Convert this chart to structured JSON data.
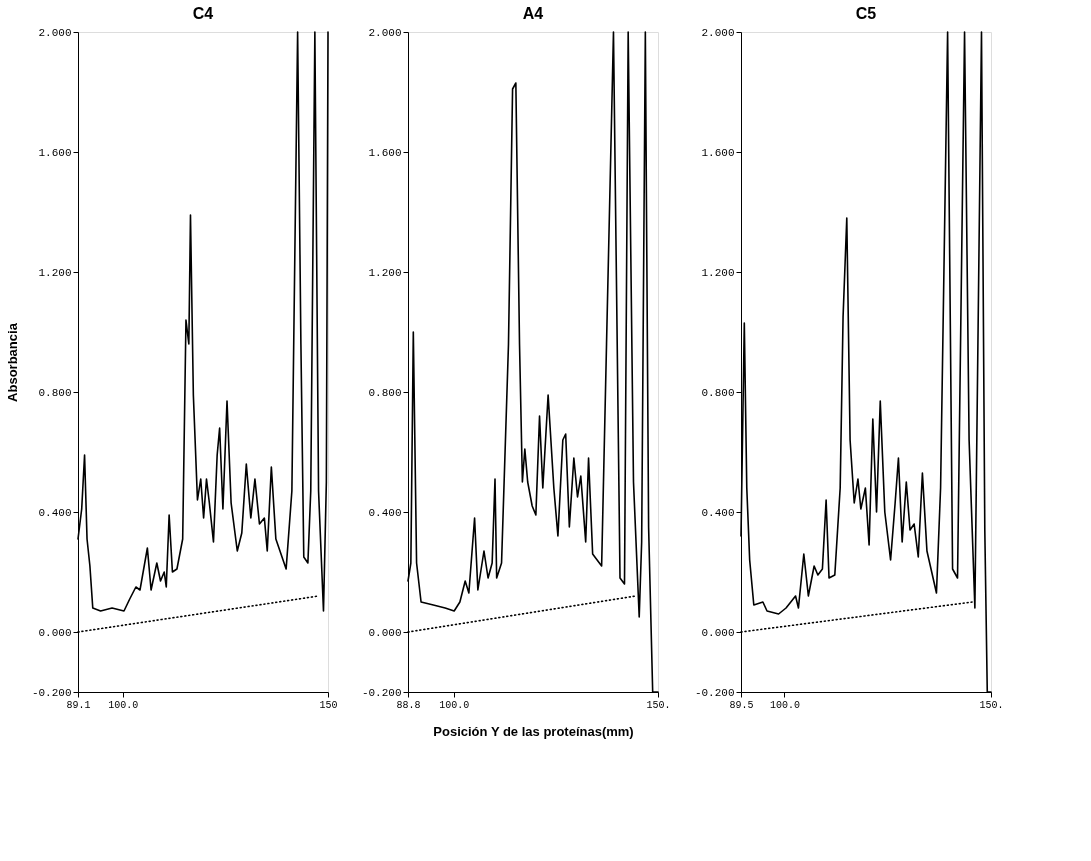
{
  "chart_data": [
    {
      "type": "line",
      "title": "C4",
      "ylabel": "Absorbancia",
      "xlim": [
        89.1,
        150
      ],
      "xticks": [
        {
          "value": 89.1,
          "label": "89.1"
        },
        {
          "value": 100.0,
          "label": "100.0"
        },
        {
          "value": 150,
          "label": "150"
        }
      ],
      "ylim": [
        -0.2,
        2.0
      ],
      "yticks": [
        {
          "value": -0.2,
          "label": "-0.200"
        },
        {
          "value": 0,
          "label": "0.000"
        },
        {
          "value": 0.4,
          "label": "0.400"
        },
        {
          "value": 0.8,
          "label": "0.800"
        },
        {
          "value": 1.2,
          "label": "1.200"
        },
        {
          "value": 1.6,
          "label": "1.600"
        },
        {
          "value": 2.0,
          "label": "2.000"
        }
      ],
      "series": [
        {
          "color": "#000000",
          "line_style": "solid",
          "x": [
            89.1,
            90.0,
            90.7,
            91.3,
            92.0,
            92.7,
            94.6,
            97.4,
            100.3,
            101.7,
            103.2,
            104.2,
            106.0,
            106.9,
            108.3,
            109.2,
            110.1,
            110.6,
            111.3,
            112.1,
            113.2,
            114.6,
            115.4,
            116.1,
            116.5,
            117.2,
            118.2,
            119.0,
            119.7,
            120.4,
            121.1,
            122.1,
            123.0,
            123.6,
            124.4,
            125.4,
            126.4,
            127.9,
            129.0,
            130.1,
            131.2,
            132.2,
            133.3,
            134.5,
            135.2,
            136.2,
            137.3,
            139.8,
            141.2,
            142.6,
            143.4,
            144.1,
            145.1,
            145.8,
            146.8,
            147.7,
            148.9,
            149.6,
            150.0
          ],
          "values": [
            0.31,
            0.41,
            0.59,
            0.31,
            0.22,
            0.08,
            0.07,
            0.08,
            0.07,
            0.11,
            0.15,
            0.14,
            0.28,
            0.14,
            0.23,
            0.17,
            0.2,
            0.15,
            0.39,
            0.2,
            0.21,
            0.31,
            1.04,
            0.96,
            1.39,
            0.79,
            0.44,
            0.51,
            0.38,
            0.51,
            0.43,
            0.3,
            0.59,
            0.68,
            0.41,
            0.77,
            0.43,
            0.27,
            0.33,
            0.56,
            0.38,
            0.51,
            0.36,
            0.38,
            0.27,
            0.55,
            0.31,
            0.21,
            0.47,
            2.0,
            0.96,
            0.25,
            0.23,
            0.47,
            2.0,
            0.47,
            0.07,
            0.5,
            2.0
          ]
        },
        {
          "type": "line",
          "line_style": "dotted",
          "color": "#000000",
          "x": [
            89.1,
            147.7
          ],
          "values": [
            0.0,
            0.12
          ]
        }
      ]
    },
    {
      "type": "line",
      "title": "A4",
      "xlabel": "Posición Y de las proteínas(mm)",
      "xlim": [
        88.8,
        150
      ],
      "xticks": [
        {
          "value": 88.8,
          "label": "88.8"
        },
        {
          "value": 100.0,
          "label": "100.0"
        },
        {
          "value": 150,
          "label": "150."
        }
      ],
      "ylim": [
        -0.2,
        2.0
      ],
      "yticks": [
        {
          "value": -0.2,
          "label": "-0.200"
        },
        {
          "value": 0,
          "label": "0.000"
        },
        {
          "value": 0.4,
          "label": "0.400"
        },
        {
          "value": 0.8,
          "label": "0.800"
        },
        {
          "value": 1.2,
          "label": "1.200"
        },
        {
          "value": 1.6,
          "label": "1.600"
        },
        {
          "value": 2.0,
          "label": "2.000"
        }
      ],
      "series": [
        {
          "color": "#000000",
          "line_style": "solid",
          "x": [
            88.8,
            89.5,
            90.1,
            90.9,
            92.0,
            95.0,
            97.9,
            100.1,
            101.5,
            102.8,
            103.7,
            105.1,
            105.9,
            107.4,
            108.4,
            109.4,
            110.1,
            110.5,
            111.7,
            113.4,
            114.4,
            115.2,
            116.1,
            116.8,
            117.4,
            118.1,
            119.2,
            120.1,
            121.0,
            121.8,
            123.1,
            124.5,
            125.5,
            126.7,
            127.4,
            128.3,
            129.4,
            130.3,
            131.1,
            132.3,
            133.0,
            134.0,
            136.2,
            137.4,
            139.1,
            140.7,
            141.8,
            142.7,
            144.0,
            145.4,
            146.0,
            146.9,
            147.7,
            148.7,
            150.0
          ],
          "values": [
            0.17,
            0.23,
            1.0,
            0.23,
            0.1,
            0.09,
            0.08,
            0.07,
            0.1,
            0.17,
            0.13,
            0.38,
            0.14,
            0.27,
            0.18,
            0.23,
            0.51,
            0.18,
            0.23,
            0.96,
            1.81,
            1.83,
            0.96,
            0.5,
            0.61,
            0.5,
            0.42,
            0.39,
            0.72,
            0.48,
            0.79,
            0.48,
            0.32,
            0.64,
            0.66,
            0.35,
            0.58,
            0.45,
            0.52,
            0.3,
            0.58,
            0.26,
            0.22,
            0.96,
            2.0,
            0.18,
            0.16,
            2.0,
            0.5,
            0.05,
            0.3,
            2.0,
            0.35,
            -0.2,
            -0.2
          ]
        },
        {
          "type": "line",
          "line_style": "dotted",
          "color": "#000000",
          "x": [
            88.8,
            144.5
          ],
          "values": [
            0.0,
            0.12
          ]
        }
      ]
    },
    {
      "type": "line",
      "title": "C5",
      "xlim": [
        89.5,
        150
      ],
      "xticks": [
        {
          "value": 89.5,
          "label": "89.5"
        },
        {
          "value": 100.0,
          "label": "100.0"
        },
        {
          "value": 150,
          "label": "150."
        }
      ],
      "ylim": [
        -0.2,
        2.0
      ],
      "yticks": [
        {
          "value": -0.2,
          "label": "-0.200"
        },
        {
          "value": 0,
          "label": "0.000"
        },
        {
          "value": 0.4,
          "label": "0.400"
        },
        {
          "value": 0.8,
          "label": "0.800"
        },
        {
          "value": 1.2,
          "label": "1.200"
        },
        {
          "value": 1.6,
          "label": "1.600"
        },
        {
          "value": 2.0,
          "label": "2.000"
        }
      ],
      "series": [
        {
          "color": "#000000",
          "line_style": "solid",
          "x": [
            89.5,
            90.3,
            90.9,
            91.6,
            92.6,
            94.8,
            95.8,
            98.6,
            100.4,
            102.7,
            103.4,
            104.7,
            105.8,
            107.2,
            108.1,
            109.2,
            110.1,
            110.8,
            112.2,
            113.5,
            114.2,
            115.1,
            115.9,
            116.9,
            117.8,
            118.5,
            119.6,
            120.5,
            121.4,
            122.3,
            123.2,
            124.3,
            125.7,
            126.8,
            127.6,
            128.5,
            129.5,
            130.4,
            131.4,
            132.4,
            133.4,
            134.5,
            136.8,
            137.8,
            139.5,
            140.7,
            141.9,
            143.6,
            144.7,
            146.1,
            147.7,
            148.5,
            149.1,
            150.0
          ],
          "values": [
            0.32,
            1.03,
            0.48,
            0.24,
            0.09,
            0.1,
            0.07,
            0.06,
            0.08,
            0.12,
            0.08,
            0.26,
            0.12,
            0.22,
            0.19,
            0.21,
            0.44,
            0.18,
            0.19,
            0.48,
            1.05,
            1.38,
            0.64,
            0.43,
            0.51,
            0.41,
            0.48,
            0.29,
            0.71,
            0.4,
            0.77,
            0.4,
            0.24,
            0.43,
            0.58,
            0.3,
            0.5,
            0.34,
            0.36,
            0.25,
            0.53,
            0.27,
            0.13,
            0.48,
            2.0,
            0.21,
            0.18,
            2.0,
            0.64,
            0.08,
            2.0,
            0.34,
            -0.2,
            -0.2
          ]
        },
        {
          "type": "line",
          "line_style": "dotted",
          "color": "#000000",
          "x": [
            89.5,
            145.5
          ],
          "values": [
            0.0,
            0.1
          ]
        }
      ]
    }
  ]
}
